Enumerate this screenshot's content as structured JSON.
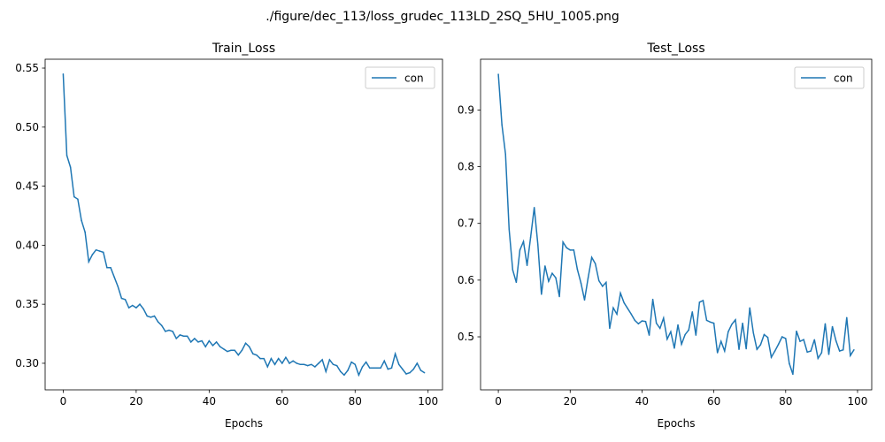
{
  "figure_title": "./figure/dec_113/loss_grudec_113LD_2SQ_5HU_1005.png",
  "colors": {
    "series": "#1f77b4"
  },
  "chart_data": [
    {
      "type": "line",
      "title": "Train_Loss",
      "xlabel": "Epochs",
      "ylabel": "",
      "xlim": [
        -4.95,
        103.95
      ],
      "ylim": [
        0.2775,
        0.5575
      ],
      "xticks": [
        0,
        20,
        40,
        60,
        80,
        100
      ],
      "yticks": [
        0.3,
        0.35,
        0.4,
        0.45,
        0.5,
        0.55
      ],
      "ytick_labels": [
        "0.30",
        "0.35",
        "0.40",
        "0.45",
        "0.50",
        "0.55"
      ],
      "legend_position": "top-right",
      "grid": false,
      "series": [
        {
          "name": "con",
          "x": [
            0,
            1,
            2,
            3,
            4,
            5,
            6,
            7,
            8,
            9,
            10,
            11,
            12,
            13,
            14,
            15,
            16,
            17,
            18,
            19,
            20,
            21,
            22,
            23,
            24,
            25,
            26,
            27,
            28,
            29,
            30,
            31,
            32,
            33,
            34,
            35,
            36,
            37,
            38,
            39,
            40,
            41,
            42,
            43,
            44,
            45,
            46,
            47,
            48,
            49,
            50,
            51,
            52,
            53,
            54,
            55,
            56,
            57,
            58,
            59,
            60,
            61,
            62,
            63,
            64,
            65,
            66,
            67,
            68,
            69,
            70,
            71,
            72,
            73,
            74,
            75,
            76,
            77,
            78,
            79,
            80,
            81,
            82,
            83,
            84,
            85,
            86,
            87,
            88,
            89,
            90,
            91,
            92,
            93,
            94,
            95,
            96,
            97,
            98,
            99
          ],
          "values": [
            0.545,
            0.476,
            0.466,
            0.441,
            0.439,
            0.421,
            0.411,
            0.386,
            0.392,
            0.396,
            0.395,
            0.394,
            0.381,
            0.381,
            0.373,
            0.365,
            0.355,
            0.354,
            0.347,
            0.349,
            0.347,
            0.35,
            0.346,
            0.34,
            0.339,
            0.34,
            0.335,
            0.332,
            0.327,
            0.328,
            0.327,
            0.321,
            0.324,
            0.323,
            0.323,
            0.318,
            0.321,
            0.318,
            0.319,
            0.314,
            0.319,
            0.315,
            0.318,
            0.314,
            0.312,
            0.31,
            0.311,
            0.311,
            0.307,
            0.311,
            0.317,
            0.314,
            0.308,
            0.307,
            0.304,
            0.304,
            0.297,
            0.304,
            0.299,
            0.304,
            0.3,
            0.305,
            0.3,
            0.302,
            0.3,
            0.299,
            0.299,
            0.298,
            0.299,
            0.297,
            0.3,
            0.303,
            0.293,
            0.303,
            0.299,
            0.298,
            0.293,
            0.29,
            0.294,
            0.301,
            0.299,
            0.29,
            0.297,
            0.301,
            0.296,
            0.296,
            0.296,
            0.296,
            0.302,
            0.295,
            0.296,
            0.308,
            0.299,
            0.295,
            0.291,
            0.292,
            0.295,
            0.3,
            0.294,
            0.292
          ]
        }
      ]
    },
    {
      "type": "line",
      "title": "Test_Loss",
      "xlabel": "Epochs",
      "ylabel": "",
      "xlim": [
        -4.95,
        103.95
      ],
      "ylim": [
        0.4065,
        0.9895
      ],
      "xticks": [
        0,
        20,
        40,
        60,
        80,
        100
      ],
      "yticks": [
        0.5,
        0.6,
        0.7,
        0.8,
        0.9
      ],
      "ytick_labels": [
        "0.5",
        "0.6",
        "0.7",
        "0.8",
        "0.9"
      ],
      "legend_position": "top-right",
      "grid": false,
      "series": [
        {
          "name": "con",
          "x": [
            0,
            1,
            2,
            3,
            4,
            5,
            6,
            7,
            8,
            9,
            10,
            11,
            12,
            13,
            14,
            15,
            16,
            17,
            18,
            19,
            20,
            21,
            22,
            23,
            24,
            25,
            26,
            27,
            28,
            29,
            30,
            31,
            32,
            33,
            34,
            35,
            36,
            37,
            38,
            39,
            40,
            41,
            42,
            43,
            44,
            45,
            46,
            47,
            48,
            49,
            50,
            51,
            52,
            53,
            54,
            55,
            56,
            57,
            58,
            59,
            60,
            61,
            62,
            63,
            64,
            65,
            66,
            67,
            68,
            69,
            70,
            71,
            72,
            73,
            74,
            75,
            76,
            77,
            78,
            79,
            80,
            81,
            82,
            83,
            84,
            85,
            86,
            87,
            88,
            89,
            90,
            91,
            92,
            93,
            94,
            95,
            96,
            97,
            98,
            99
          ],
          "values": [
            0.963,
            0.874,
            0.822,
            0.69,
            0.618,
            0.596,
            0.653,
            0.668,
            0.626,
            0.676,
            0.728,
            0.663,
            0.575,
            0.625,
            0.598,
            0.612,
            0.604,
            0.571,
            0.667,
            0.657,
            0.653,
            0.653,
            0.619,
            0.595,
            0.565,
            0.604,
            0.64,
            0.629,
            0.599,
            0.589,
            0.596,
            0.515,
            0.551,
            0.54,
            0.577,
            0.56,
            0.55,
            0.54,
            0.529,
            0.523,
            0.528,
            0.527,
            0.503,
            0.566,
            0.524,
            0.515,
            0.533,
            0.496,
            0.509,
            0.48,
            0.521,
            0.487,
            0.504,
            0.512,
            0.544,
            0.503,
            0.561,
            0.564,
            0.529,
            0.526,
            0.524,
            0.472,
            0.492,
            0.475,
            0.509,
            0.522,
            0.53,
            0.478,
            0.524,
            0.479,
            0.551,
            0.507,
            0.478,
            0.486,
            0.504,
            0.499,
            0.464,
            0.475,
            0.487,
            0.5,
            0.497,
            0.453,
            0.434,
            0.51,
            0.492,
            0.495,
            0.473,
            0.475,
            0.495,
            0.462,
            0.472,
            0.523,
            0.469,
            0.518,
            0.493,
            0.475,
            0.477,
            0.534,
            0.467,
            0.477
          ]
        }
      ]
    }
  ]
}
